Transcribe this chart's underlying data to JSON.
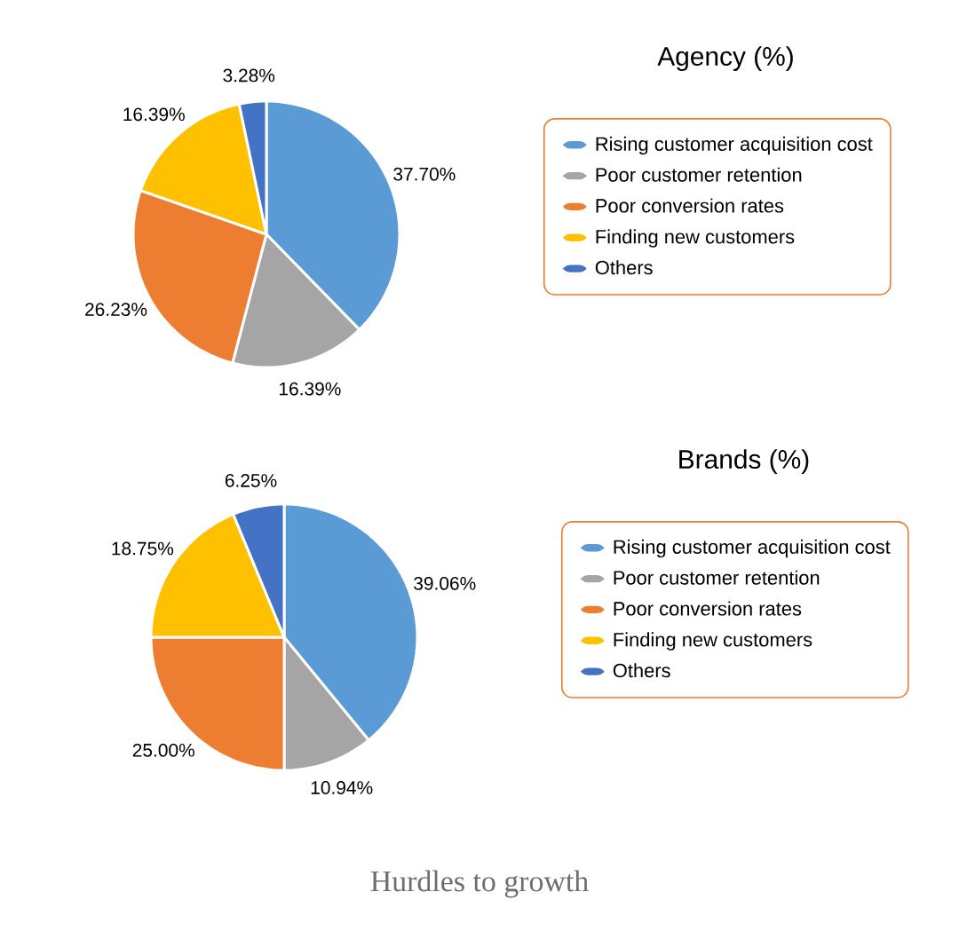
{
  "chart_data": [
    {
      "type": "pie",
      "title": "Agency (%)",
      "categories": [
        "Rising customer acquisition cost",
        "Poor customer retention",
        "Poor conversion rates",
        "Finding new customers",
        "Others"
      ],
      "values": [
        37.7,
        16.39,
        26.23,
        16.39,
        3.28
      ],
      "value_labels": [
        "37.70%",
        "16.39%",
        "26.23%",
        "16.39%",
        "3.28%"
      ],
      "colors": [
        "#5b9bd5",
        "#a5a5a5",
        "#ed7d31",
        "#ffc000",
        "#4472c4"
      ],
      "legend": "right"
    },
    {
      "type": "pie",
      "title": "Brands (%)",
      "categories": [
        "Rising customer acquisition cost",
        "Poor customer retention",
        "Poor conversion rates",
        "Finding new customers",
        "Others"
      ],
      "values": [
        39.06,
        10.94,
        25.0,
        18.75,
        6.25
      ],
      "value_labels": [
        "39.06%",
        "10.94%",
        "25.00%",
        "18.75%",
        "6.25%"
      ],
      "colors": [
        "#5b9bd5",
        "#a5a5a5",
        "#ed7d31",
        "#ffc000",
        "#4472c4"
      ],
      "legend": "right",
      "annotations": [
        "Hurdles to growth"
      ]
    }
  ]
}
